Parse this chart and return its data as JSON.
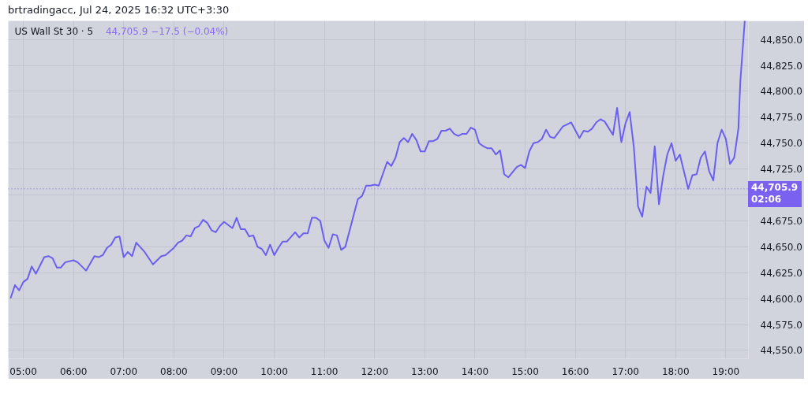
{
  "chart_data": {
    "type": "line",
    "title": "US Wall St 30 · 5",
    "subtitle": "44,705.9  −17.5 (−0.04%)",
    "annotations": [
      "brtradingacc, Jul 24, 2025 16:32 UTC+3:30"
    ],
    "x": [
      4.75,
      4.833,
      4.917,
      5,
      5.083,
      5.167,
      5.25,
      5.417,
      5.5,
      5.583,
      5.667,
      5.75,
      5.833,
      6,
      6.083,
      6.25,
      6.417,
      6.5,
      6.583,
      6.667,
      6.75,
      6.833,
      6.917,
      7,
      7.083,
      7.167,
      7.25,
      7.417,
      7.583,
      7.75,
      7.833,
      8,
      8.083,
      8.167,
      8.25,
      8.333,
      8.417,
      8.5,
      8.583,
      8.667,
      8.75,
      8.833,
      8.917,
      9,
      9.167,
      9.25,
      9.333,
      9.417,
      9.5,
      9.583,
      9.667,
      9.75,
      9.833,
      9.917,
      10,
      10.083,
      10.167,
      10.25,
      10.417,
      10.5,
      10.583,
      10.667,
      10.75,
      10.833,
      10.917,
      11,
      11.083,
      11.167,
      11.25,
      11.333,
      11.417,
      11.667,
      11.75,
      11.833,
      11.917,
      12,
      12.083,
      12.25,
      12.333,
      12.417,
      12.5,
      12.583,
      12.667,
      12.75,
      12.833,
      12.917,
      13,
      13.083,
      13.167,
      13.25,
      13.333,
      13.417,
      13.5,
      13.583,
      13.667,
      13.75,
      13.833,
      13.917,
      14,
      14.083,
      14.167,
      14.25,
      14.333,
      14.417,
      14.5,
      14.583,
      14.667,
      14.75,
      14.833,
      14.917,
      15,
      15.083,
      15.167,
      15.25,
      15.333,
      15.417,
      15.5,
      15.583,
      15.75,
      15.833,
      15.917,
      16.083,
      16.167,
      16.25,
      16.333,
      16.417,
      16.5,
      16.583,
      16.75,
      16.833,
      16.917,
      17,
      17.083,
      17.167,
      17.25,
      17.333,
      17.417,
      17.5,
      17.583,
      17.667,
      17.75,
      17.833,
      17.917,
      18,
      18.083,
      18.25,
      18.333,
      18.417,
      18.5,
      18.583,
      18.667,
      18.75,
      18.833,
      18.917,
      19,
      19.083,
      19.167,
      19.25,
      19.289,
      19.377
    ],
    "values": [
      44601,
      44613,
      44608,
      44616,
      44619,
      44631,
      44624,
      44640,
      44641,
      44639,
      44630,
      44630,
      44635,
      44637,
      44635,
      44627,
      44641,
      44640,
      44642,
      44649,
      44652,
      44659,
      44660,
      44640,
      44645,
      44641,
      44654,
      44645,
      44633,
      44641,
      44642,
      44649,
      44654,
      44656,
      44661,
      44660,
      44668,
      44670,
      44676,
      44673,
      44666,
      44664,
      44670,
      44674,
      44668,
      44678,
      44667,
      44667,
      44660,
      44661,
      44650,
      44648,
      44642,
      44652,
      44642,
      44649,
      44655,
      44655,
      44664,
      44659,
      44663,
      44663,
      44678,
      44678,
      44675,
      44656,
      44649,
      44662,
      44661,
      44647,
      44650,
      44696,
      44699,
      44709,
      44709,
      44710,
      44709,
      44732,
      44728,
      44736,
      44751,
      44755,
      44751,
      44759,
      44753,
      44742,
      44742,
      44752,
      44752,
      44754,
      44762,
      44762,
      44764,
      44759,
      44757,
      44759,
      44759,
      44765,
      44763,
      44750,
      44747,
      44745,
      44745,
      44739,
      44743,
      44720,
      44717,
      44722,
      44727,
      44729,
      44726,
      44742,
      44750,
      44751,
      44754,
      44763,
      44756,
      44755,
      44766,
      44768,
      44770,
      44755,
      44762,
      44761,
      44764,
      44770,
      44773,
      44771,
      44758,
      44784,
      44751,
      44769,
      44780,
      44746,
      44689,
      44679,
      44708,
      44702,
      44747,
      44691,
      44718,
      44739,
      44750,
      44733,
      44739,
      44706,
      44719,
      44720,
      44736,
      44742,
      44723,
      44714,
      44750,
      44763,
      44754,
      44730,
      44736,
      44764,
      44810,
      44868
    ],
    "color": "#6b5ff0",
    "line_style": "solid",
    "xlim": [
      4.7,
      19.45
    ],
    "xticks": [
      {
        "value": 5,
        "label": "05:00"
      },
      {
        "value": 6,
        "label": "06:00"
      },
      {
        "value": 7,
        "label": "07:00"
      },
      {
        "value": 8,
        "label": "08:00"
      },
      {
        "value": 9,
        "label": "09:00"
      },
      {
        "value": 10,
        "label": "10:00"
      },
      {
        "value": 11,
        "label": "11:00"
      },
      {
        "value": 12,
        "label": "12:00"
      },
      {
        "value": 13,
        "label": "13:00"
      },
      {
        "value": 14,
        "label": "14:00"
      },
      {
        "value": 15,
        "label": "15:00"
      },
      {
        "value": 16,
        "label": "16:00"
      },
      {
        "value": 17,
        "label": "17:00"
      },
      {
        "value": 18,
        "label": "18:00"
      },
      {
        "value": 19,
        "label": "19:00"
      }
    ],
    "ylim": [
      44542,
      44868
    ],
    "yticks": [
      {
        "value": 44550,
        "label": "44,550.0"
      },
      {
        "value": 44575,
        "label": "44,575.0"
      },
      {
        "value": 44600,
        "label": "44,600.0"
      },
      {
        "value": 44625,
        "label": "44,625.0"
      },
      {
        "value": 44650,
        "label": "44,650.0"
      },
      {
        "value": 44675,
        "label": "44,675.0"
      },
      {
        "value": 44700,
        "label": null
      },
      {
        "value": 44725,
        "label": "44,725.0"
      },
      {
        "value": 44750,
        "label": "44,750.0"
      },
      {
        "value": 44775,
        "label": "44,775.0"
      },
      {
        "value": 44800,
        "label": "44,800.0"
      },
      {
        "value": 44825,
        "label": "44,825.0"
      },
      {
        "value": 44850,
        "label": "44,850.0"
      }
    ],
    "ref_lines": [
      {
        "axis": "y",
        "value": 44705.9,
        "label": "44,705.9\n02:06",
        "color": "#7b61f0",
        "line_style": "dotted"
      }
    ],
    "grid": true
  }
}
